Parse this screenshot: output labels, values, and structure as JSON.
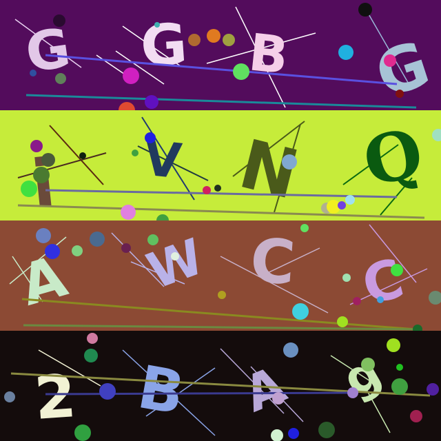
{
  "bands": [
    {
      "background": "#530c5c",
      "characters": [
        {
          "text": "G",
          "color": "#e2c8e8"
        },
        {
          "text": "G",
          "color": "#f2ddf2"
        },
        {
          "text": "B",
          "color": "#f5cfe9"
        },
        {
          "text": "G",
          "color": "#a7c3d6"
        }
      ]
    },
    {
      "background": "#c6ec3a",
      "characters": [
        {
          "text": "i",
          "color": "#6a4a3a"
        },
        {
          "text": "V",
          "color": "#213a5e"
        },
        {
          "text": "N",
          "color": "#4a5a1a"
        },
        {
          "text": "Q",
          "color": "#0a5a10"
        }
      ]
    },
    {
      "background": "#8c4a34",
      "characters": [
        {
          "text": "A",
          "color": "#c8eac8"
        },
        {
          "text": "W",
          "color": "#b9b2e8"
        },
        {
          "text": "C",
          "color": "#c8b0c8"
        },
        {
          "text": "C",
          "color": "#c99ae0"
        }
      ]
    },
    {
      "background": "#140c0c",
      "characters": [
        {
          "text": "2",
          "color": "#f2f2d4"
        },
        {
          "text": "B",
          "color": "#8aa4e8"
        },
        {
          "text": "A",
          "color": "#b8a8d8"
        },
        {
          "text": "g",
          "color": "#c8e8b0"
        }
      ]
    }
  ]
}
